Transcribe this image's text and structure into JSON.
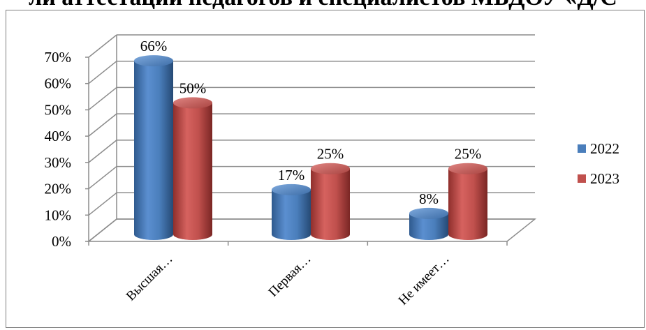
{
  "heading": "ли аттестации педагогов и специалистов МБДОУ «Д/С",
  "chart_data": {
    "type": "bar",
    "style": "3d-cylinder",
    "categories": [
      "Высшая…",
      "Первая…",
      "Не имеет…"
    ],
    "series": [
      {
        "name": "2022",
        "values": [
          66,
          17,
          8
        ],
        "labels": [
          "66%",
          "17%",
          "8%"
        ],
        "color": "#4a7ebb"
      },
      {
        "name": "2023",
        "values": [
          50,
          25,
          25
        ],
        "labels": [
          "50%",
          "25%",
          "25%"
        ],
        "color": "#c0504d"
      }
    ],
    "ylim": [
      0,
      70
    ],
    "yticks": [
      "0%",
      "10%",
      "20%",
      "30%",
      "40%",
      "50%",
      "60%",
      "70%"
    ],
    "grid": true,
    "legend": "right"
  }
}
